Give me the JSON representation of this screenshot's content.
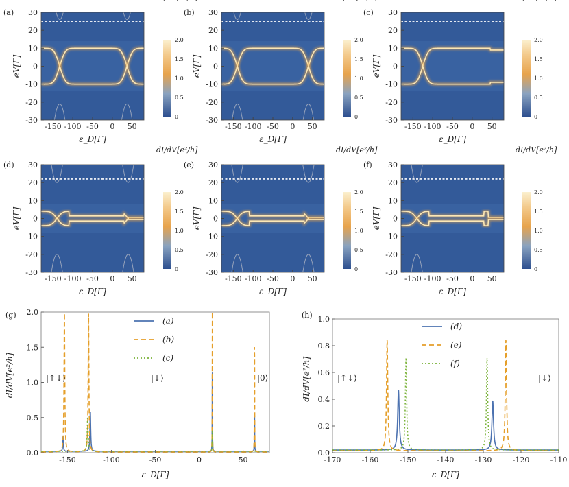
{
  "figure": {
    "colorbar_title": "dI/dV[e²/h]",
    "colorbar_ticks": [
      "2.0",
      "1.5",
      "1.0",
      "0.5",
      "0"
    ],
    "panel_labels": [
      "(a)",
      "(b)",
      "(c)",
      "(d)",
      "(e)",
      "(f)",
      "(g)",
      "(h)"
    ]
  },
  "chart_data": [
    {
      "id": "a",
      "type": "heatmap",
      "xlabel": "ε_D[Γ]",
      "ylabel": "eV[Γ]",
      "xlim": [
        -180,
        80
      ],
      "ylim": [
        -30,
        30
      ],
      "xticks": [
        -150,
        -100,
        -50,
        0,
        50
      ],
      "yticks": [
        -30,
        -20,
        -10,
        0,
        10,
        20,
        30
      ],
      "colorbar_range": [
        0,
        2.0
      ],
      "gap": 10,
      "dashed_line": 25,
      "crossings": [
        -133,
        37
      ],
      "right_behavior": "kink",
      "side_bands": true
    },
    {
      "id": "b",
      "type": "heatmap",
      "xlabel": "ε_D[Γ]",
      "ylabel": "eV[Γ]",
      "xlim": [
        -180,
        80
      ],
      "ylim": [
        -30,
        30
      ],
      "xticks": [
        -150,
        -100,
        -50,
        0,
        50
      ],
      "yticks": [
        -30,
        -20,
        -10,
        0,
        10,
        20,
        30
      ],
      "colorbar_range": [
        0,
        2.0
      ],
      "gap": 10,
      "dashed_line": 25,
      "crossings": [
        -140,
        40
      ],
      "right_behavior": "kink",
      "side_bands": true
    },
    {
      "id": "c",
      "type": "heatmap",
      "xlabel": "ε_D[Γ]",
      "ylabel": "eV[Γ]",
      "xlim": [
        -180,
        80
      ],
      "ylim": [
        -30,
        30
      ],
      "xticks": [
        -150,
        -100,
        -50,
        0,
        50
      ],
      "yticks": [
        -30,
        -20,
        -10,
        0,
        10,
        20,
        30
      ],
      "colorbar_range": [
        0,
        2.0
      ],
      "gap": 10,
      "dashed_line": 25,
      "crossings": [
        -125
      ],
      "right_behavior": "step",
      "side_bands": false
    },
    {
      "id": "d",
      "type": "heatmap",
      "xlabel": "ε_D[Γ]",
      "ylabel": "eV[Γ]",
      "xlim": [
        -180,
        80
      ],
      "ylim": [
        -30,
        30
      ],
      "xticks": [
        -150,
        -100,
        -50,
        0,
        50
      ],
      "yticks": [
        -30,
        -20,
        -10,
        0,
        10,
        20,
        30
      ],
      "colorbar_range": [
        0,
        2.0
      ],
      "gap": 4,
      "dashed_line": 22,
      "crossings": [
        -140,
        40
      ],
      "right_behavior": "merge",
      "side_bands": true
    },
    {
      "id": "e",
      "type": "heatmap",
      "xlabel": "ε_D[Γ]",
      "ylabel": "eV[Γ]",
      "xlim": [
        -180,
        80
      ],
      "ylim": [
        -30,
        30
      ],
      "xticks": [
        -150,
        -100,
        -50,
        0,
        50
      ],
      "yticks": [
        -30,
        -20,
        -10,
        0,
        10,
        20,
        30
      ],
      "colorbar_range": [
        0,
        2.0
      ],
      "gap": 4,
      "dashed_line": 22,
      "crossings": [
        -140,
        40
      ],
      "right_behavior": "merge",
      "side_bands": true
    },
    {
      "id": "f",
      "type": "heatmap",
      "xlabel": "ε_D[Γ]",
      "ylabel": "eV[Γ]",
      "xlim": [
        -180,
        80
      ],
      "ylim": [
        -30,
        30
      ],
      "xticks": [
        -150,
        -100,
        -50,
        0,
        50
      ],
      "yticks": [
        -30,
        -20,
        -10,
        0,
        10,
        20,
        30
      ],
      "colorbar_range": [
        0,
        2.0
      ],
      "gap": 4,
      "dashed_line": 22,
      "crossings": [
        -140
      ],
      "right_behavior": "merge",
      "side_bands": true
    },
    {
      "id": "g",
      "type": "line",
      "xlabel": "ε_D[Γ]",
      "ylabel": "dI/dV[e²/h]",
      "xlim": [
        -180,
        80
      ],
      "ylim": [
        0,
        2.0
      ],
      "xticks": [
        -150,
        -100,
        -50,
        0,
        50
      ],
      "yticks": [
        0.0,
        0.5,
        1.0,
        1.5,
        2.0
      ],
      "annotations": [
        "|↑↓⟩",
        "|↓⟩",
        "|0⟩"
      ],
      "series": [
        {
          "name": "(a)",
          "color": "#4c72b0",
          "dash": "",
          "baseline": 0.02,
          "peaks": [
            [
              -155,
              0.22,
              0.4
            ],
            [
              -124,
              0.58,
              0.5
            ],
            [
              15,
              1.12,
              0.15
            ],
            [
              63,
              0.7,
              0.15
            ]
          ]
        },
        {
          "name": "(b)",
          "color": "#e59f2a",
          "dash": "7,4",
          "baseline": 0.01,
          "peaks": [
            [
              -153.5,
              2.0,
              0.5
            ],
            [
              -126,
              1.98,
              0.5
            ],
            [
              15,
              2.0,
              0.12
            ],
            [
              63,
              1.98,
              0.15
            ]
          ]
        },
        {
          "name": "(c)",
          "color": "#7bb33a",
          "dash": "2,3",
          "baseline": 0.02,
          "peaks": [
            [
              -127,
              0.5,
              0.6
            ],
            [
              15,
              0.3,
              0.2
            ]
          ]
        }
      ]
    },
    {
      "id": "h",
      "type": "line",
      "xlabel": "ε_D[Γ]",
      "ylabel": "dI/dV[e²/h]",
      "xlim": [
        -170,
        -110
      ],
      "ylim": [
        0,
        1.0
      ],
      "xticks": [
        -170,
        -160,
        -150,
        -140,
        -130,
        -120,
        -110
      ],
      "yticks": [
        0.0,
        0.2,
        0.4,
        0.6,
        0.8,
        1.0
      ],
      "annotations": [
        "|↑↓⟩",
        "|↓⟩"
      ],
      "series": [
        {
          "name": "(d)",
          "color": "#4c72b0",
          "dash": "",
          "baseline": 0.02,
          "peaks": [
            [
              -152.5,
              0.45,
              0.25
            ],
            [
              -127.5,
              0.37,
              0.25
            ]
          ]
        },
        {
          "name": "(e)",
          "color": "#e59f2a",
          "dash": "7,4",
          "baseline": 0.015,
          "peaks": [
            [
              -155.5,
              0.83,
              0.2
            ],
            [
              -124,
              0.83,
              0.2
            ]
          ]
        },
        {
          "name": "(f)",
          "color": "#7bb33a",
          "dash": "2,3",
          "baseline": 0.02,
          "peaks": [
            [
              -150.5,
              0.69,
              0.2
            ],
            [
              -129,
              0.69,
              0.2
            ]
          ]
        }
      ]
    }
  ]
}
